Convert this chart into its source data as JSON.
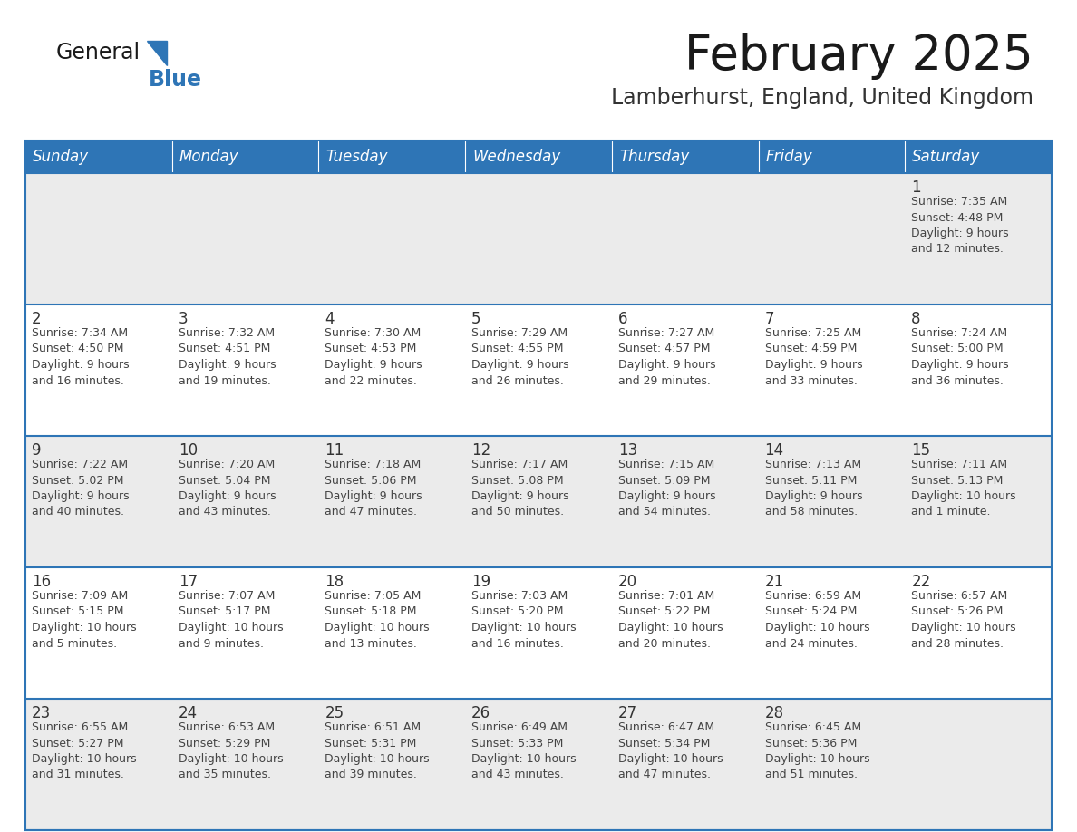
{
  "title": "February 2025",
  "subtitle": "Lamberhurst, England, United Kingdom",
  "days_of_week": [
    "Sunday",
    "Monday",
    "Tuesday",
    "Wednesday",
    "Thursday",
    "Friday",
    "Saturday"
  ],
  "header_bg": "#2E75B6",
  "header_text": "#FFFFFF",
  "row_bg_light": "#EBEBEB",
  "row_bg_white": "#FFFFFF",
  "cell_border_color": "#2E75B6",
  "day_number_color": "#333333",
  "text_color": "#444444",
  "title_color": "#1a1a1a",
  "subtitle_color": "#333333",
  "logo_black_color": "#1a1a1a",
  "logo_blue_color": "#2E75B6",
  "calendar_data": {
    "1": {
      "sunrise": "7:35 AM",
      "sunset": "4:48 PM",
      "daylight": "9 hours and 12 minutes."
    },
    "2": {
      "sunrise": "7:34 AM",
      "sunset": "4:50 PM",
      "daylight": "9 hours and 16 minutes."
    },
    "3": {
      "sunrise": "7:32 AM",
      "sunset": "4:51 PM",
      "daylight": "9 hours and 19 minutes."
    },
    "4": {
      "sunrise": "7:30 AM",
      "sunset": "4:53 PM",
      "daylight": "9 hours and 22 minutes."
    },
    "5": {
      "sunrise": "7:29 AM",
      "sunset": "4:55 PM",
      "daylight": "9 hours and 26 minutes."
    },
    "6": {
      "sunrise": "7:27 AM",
      "sunset": "4:57 PM",
      "daylight": "9 hours and 29 minutes."
    },
    "7": {
      "sunrise": "7:25 AM",
      "sunset": "4:59 PM",
      "daylight": "9 hours and 33 minutes."
    },
    "8": {
      "sunrise": "7:24 AM",
      "sunset": "5:00 PM",
      "daylight": "9 hours and 36 minutes."
    },
    "9": {
      "sunrise": "7:22 AM",
      "sunset": "5:02 PM",
      "daylight": "9 hours and 40 minutes."
    },
    "10": {
      "sunrise": "7:20 AM",
      "sunset": "5:04 PM",
      "daylight": "9 hours and 43 minutes."
    },
    "11": {
      "sunrise": "7:18 AM",
      "sunset": "5:06 PM",
      "daylight": "9 hours and 47 minutes."
    },
    "12": {
      "sunrise": "7:17 AM",
      "sunset": "5:08 PM",
      "daylight": "9 hours and 50 minutes."
    },
    "13": {
      "sunrise": "7:15 AM",
      "sunset": "5:09 PM",
      "daylight": "9 hours and 54 minutes."
    },
    "14": {
      "sunrise": "7:13 AM",
      "sunset": "5:11 PM",
      "daylight": "9 hours and 58 minutes."
    },
    "15": {
      "sunrise": "7:11 AM",
      "sunset": "5:13 PM",
      "daylight": "10 hours and 1 minute."
    },
    "16": {
      "sunrise": "7:09 AM",
      "sunset": "5:15 PM",
      "daylight": "10 hours and 5 minutes."
    },
    "17": {
      "sunrise": "7:07 AM",
      "sunset": "5:17 PM",
      "daylight": "10 hours and 9 minutes."
    },
    "18": {
      "sunrise": "7:05 AM",
      "sunset": "5:18 PM",
      "daylight": "10 hours and 13 minutes."
    },
    "19": {
      "sunrise": "7:03 AM",
      "sunset": "5:20 PM",
      "daylight": "10 hours and 16 minutes."
    },
    "20": {
      "sunrise": "7:01 AM",
      "sunset": "5:22 PM",
      "daylight": "10 hours and 20 minutes."
    },
    "21": {
      "sunrise": "6:59 AM",
      "sunset": "5:24 PM",
      "daylight": "10 hours and 24 minutes."
    },
    "22": {
      "sunrise": "6:57 AM",
      "sunset": "5:26 PM",
      "daylight": "10 hours and 28 minutes."
    },
    "23": {
      "sunrise": "6:55 AM",
      "sunset": "5:27 PM",
      "daylight": "10 hours and 31 minutes."
    },
    "24": {
      "sunrise": "6:53 AM",
      "sunset": "5:29 PM",
      "daylight": "10 hours and 35 minutes."
    },
    "25": {
      "sunrise": "6:51 AM",
      "sunset": "5:31 PM",
      "daylight": "10 hours and 39 minutes."
    },
    "26": {
      "sunrise": "6:49 AM",
      "sunset": "5:33 PM",
      "daylight": "10 hours and 43 minutes."
    },
    "27": {
      "sunrise": "6:47 AM",
      "sunset": "5:34 PM",
      "daylight": "10 hours and 47 minutes."
    },
    "28": {
      "sunrise": "6:45 AM",
      "sunset": "5:36 PM",
      "daylight": "10 hours and 51 minutes."
    }
  },
  "weeks": [
    [
      null,
      null,
      null,
      null,
      null,
      null,
      1
    ],
    [
      2,
      3,
      4,
      5,
      6,
      7,
      8
    ],
    [
      9,
      10,
      11,
      12,
      13,
      14,
      15
    ],
    [
      16,
      17,
      18,
      19,
      20,
      21,
      22
    ],
    [
      23,
      24,
      25,
      26,
      27,
      28,
      null
    ]
  ],
  "row_backgrounds": [
    "light",
    "white",
    "light",
    "white",
    "light"
  ]
}
